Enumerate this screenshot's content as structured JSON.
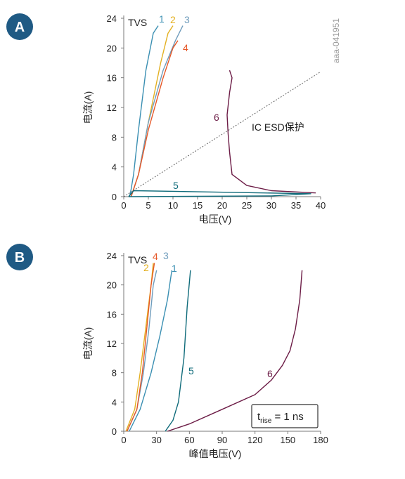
{
  "watermark": "aaa-041951",
  "colors": {
    "badge": "#1f5a84",
    "c1": "#3a8fb2",
    "c2": "#e3b021",
    "c3": "#6f9cbc",
    "c4": "#e65828",
    "c5": "#0f6b7a",
    "c6": "#6c1c46",
    "ref": "#666666",
    "axis": "#7a7a7a"
  },
  "chart_data": [
    {
      "type": "line",
      "badge": "A",
      "legend_title": "TVS",
      "xlabel": "电压(V)",
      "ylabel": "电流(A)",
      "xlim": [
        0,
        40
      ],
      "ylim": [
        0,
        24
      ],
      "xticks": [
        "0",
        "5",
        "10",
        "15",
        "20",
        "25",
        "30",
        "35",
        "40"
      ],
      "yticks": [
        "0",
        "4",
        "8",
        "12",
        "16",
        "20",
        "24"
      ],
      "reference_line": {
        "label": "IC ESD保护",
        "x": [
          0,
          40
        ],
        "y": [
          0,
          16.8
        ]
      },
      "series": [
        {
          "name": "1",
          "x": [
            1.2,
            1.5,
            2.0,
            3.0,
            4.5,
            6.0,
            7.0
          ],
          "y": [
            0,
            1,
            3,
            9,
            17,
            22,
            23
          ]
        },
        {
          "name": "2",
          "x": [
            1.5,
            2.0,
            3.0,
            5.0,
            7.5,
            9.0,
            10.0
          ],
          "y": [
            0,
            1,
            3,
            10,
            18,
            22,
            23
          ]
        },
        {
          "name": "3",
          "x": [
            1.5,
            2.0,
            3.0,
            5.0,
            8.0,
            10.5,
            12.0
          ],
          "y": [
            0,
            1,
            3,
            10,
            17,
            21,
            23
          ]
        },
        {
          "name": "4",
          "x": [
            1.5,
            2.0,
            3.0,
            5.0,
            8.0,
            10.0,
            11.0
          ],
          "y": [
            0,
            1,
            3,
            9,
            16,
            20,
            21
          ]
        },
        {
          "name": "5",
          "x": [
            1.0,
            2.0,
            38.0,
            30.0,
            1.0
          ],
          "y": [
            0,
            0.8,
            0.4,
            0.1,
            0
          ]
        },
        {
          "name": "6",
          "x": [
            39.0,
            30.0,
            25.0,
            22.0,
            21.5,
            21.2,
            21.0,
            21.5,
            22.0,
            21.5
          ],
          "y": [
            0.5,
            0.8,
            1.5,
            3,
            6,
            8.5,
            11,
            14,
            16,
            17
          ]
        }
      ]
    },
    {
      "type": "line",
      "badge": "B",
      "legend_title": "TVS",
      "xlabel": "峰值电压(V)",
      "ylabel": "电流(A)",
      "xlim": [
        0,
        180
      ],
      "ylim": [
        0,
        24
      ],
      "xticks": [
        "0",
        "30",
        "60",
        "90",
        "120",
        "150",
        "180"
      ],
      "yticks": [
        "0",
        "4",
        "8",
        "12",
        "16",
        "20",
        "24"
      ],
      "annotation": {
        "base": "t",
        "sub": "rise",
        "rest": " = 1 ns"
      },
      "series": [
        {
          "name": "1",
          "x": [
            5,
            15,
            25,
            33,
            40,
            44
          ],
          "y": [
            0,
            3,
            8,
            13,
            18,
            22
          ]
        },
        {
          "name": "2",
          "x": [
            2,
            10,
            15,
            20,
            25,
            27
          ],
          "y": [
            0,
            3,
            8,
            14,
            20,
            23
          ]
        },
        {
          "name": "3",
          "x": [
            3,
            12,
            18,
            23,
            27,
            30
          ],
          "y": [
            0,
            3,
            8,
            14,
            20,
            22
          ]
        },
        {
          "name": "4",
          "x": [
            3,
            12,
            17,
            21,
            25,
            28
          ],
          "y": [
            0,
            3,
            8,
            14,
            20,
            23
          ]
        },
        {
          "name": "5",
          "x": [
            38,
            45,
            50,
            55,
            58,
            61
          ],
          "y": [
            0,
            1.5,
            4,
            10,
            17,
            22
          ]
        },
        {
          "name": "6",
          "x": [
            40,
            60,
            90,
            120,
            135,
            145,
            152,
            157,
            161,
            163
          ],
          "y": [
            0,
            1,
            3,
            5,
            7,
            9,
            11,
            14,
            18,
            22
          ]
        }
      ]
    }
  ]
}
